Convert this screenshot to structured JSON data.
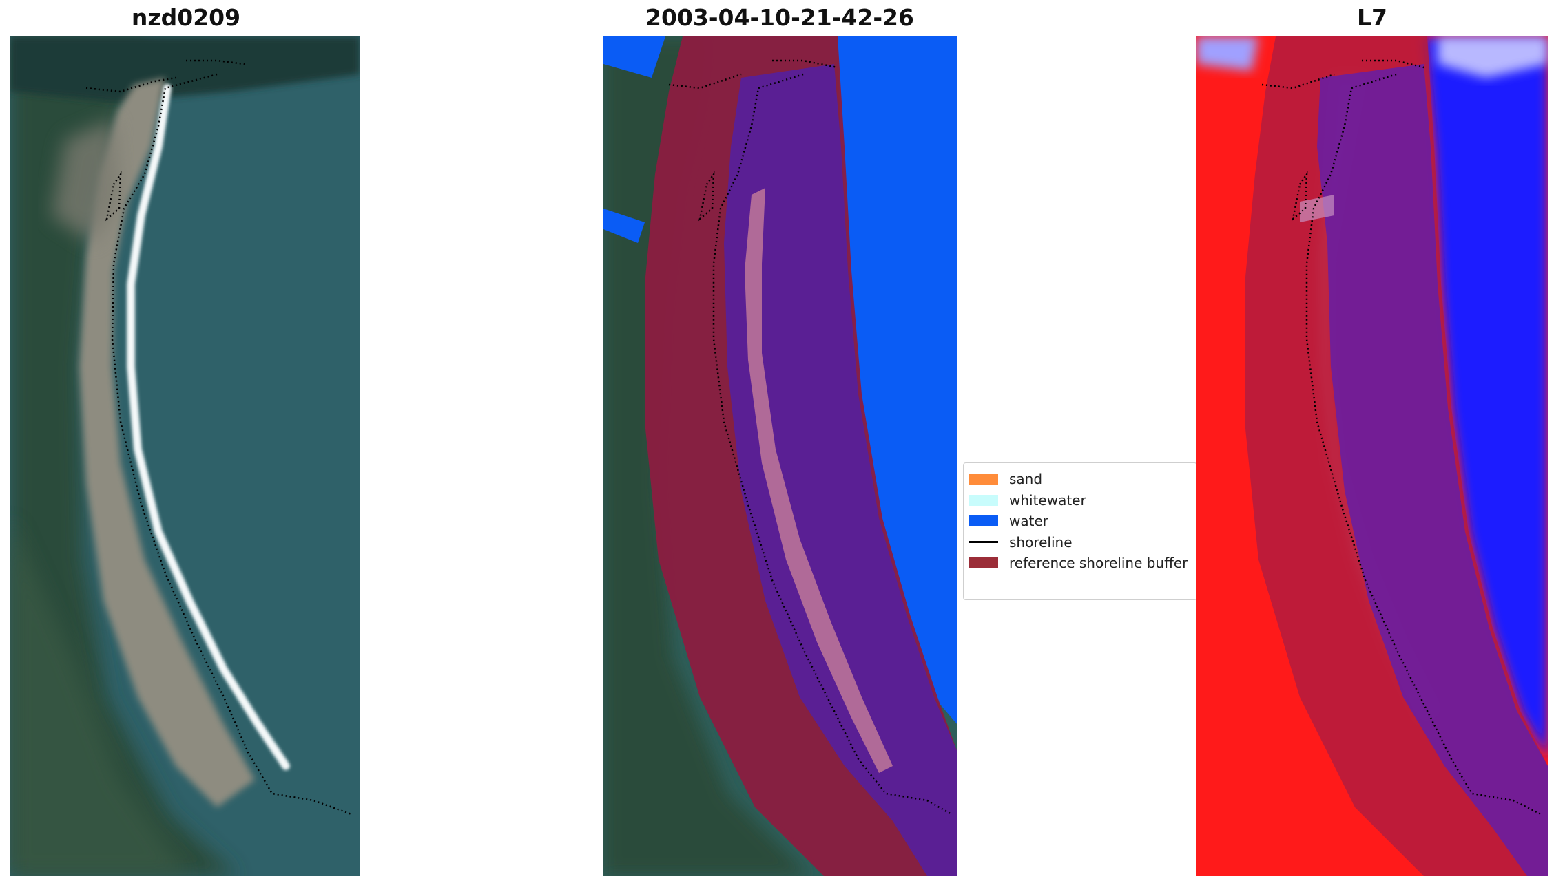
{
  "panels": {
    "left": {
      "title": "nzd0209"
    },
    "middle": {
      "title": "2003-04-10-21-42-26"
    },
    "right": {
      "title": "L7"
    }
  },
  "legend": {
    "items": [
      {
        "label": "sand",
        "color": "#ff8c3a",
        "kind": "patch"
      },
      {
        "label": "whitewater",
        "color": "#c8fcfc",
        "kind": "patch"
      },
      {
        "label": "water",
        "color": "#0a5cf5",
        "kind": "patch"
      },
      {
        "label": "shoreline",
        "color": "#000000",
        "kind": "line"
      },
      {
        "label": "reference shoreline buffer",
        "color": "#9b2d38",
        "kind": "patch"
      }
    ]
  },
  "colors": {
    "ocean": "#2e6068",
    "beach": "#8c8a7f",
    "surf": "#e8f0f2",
    "land": "#2c4a3a",
    "classified_water": "#0a5cf5",
    "buffer": "#8b1c40",
    "buffer_over_water": "#5a1f94",
    "buffer_over_sand": "#b06a98",
    "index_red": "#ff1a1a",
    "index_blue": "#1a1aff"
  }
}
